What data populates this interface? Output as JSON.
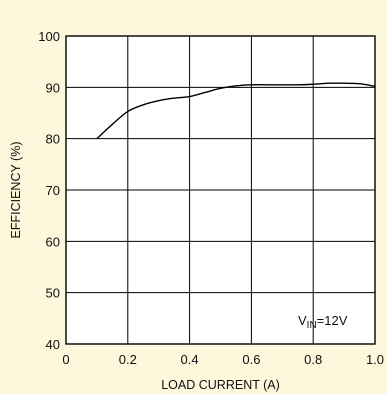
{
  "chart_data": {
    "type": "line",
    "title": "",
    "xlabel": "LOAD CURRENT (A)",
    "ylabel": "EFFICIENCY (%)",
    "xlim": [
      0,
      1.0
    ],
    "ylim": [
      40,
      100
    ],
    "x_ticks": [
      "0",
      "0.2",
      "0.4",
      "0.6",
      "0.8",
      "1.0"
    ],
    "y_ticks": [
      "40",
      "50",
      "60",
      "70",
      "80",
      "90",
      "100"
    ],
    "grid": true,
    "annotation": {
      "main": "V",
      "subscript": "IN",
      "suffix": "=12V"
    },
    "series": [
      {
        "x": [
          0.1,
          0.15,
          0.2,
          0.25,
          0.3,
          0.35,
          0.4,
          0.45,
          0.5,
          0.55,
          0.6,
          0.65,
          0.7,
          0.75,
          0.8,
          0.85,
          0.9,
          0.95,
          1.0
        ],
        "y": [
          80.0,
          82.8,
          85.3,
          86.6,
          87.4,
          87.9,
          88.2,
          89.0,
          89.8,
          90.3,
          90.5,
          90.5,
          90.5,
          90.5,
          90.6,
          90.8,
          90.8,
          90.7,
          90.2
        ]
      }
    ],
    "colors": {
      "background": "#fdf7dc",
      "line": "#000000",
      "grid": "#000000"
    }
  }
}
